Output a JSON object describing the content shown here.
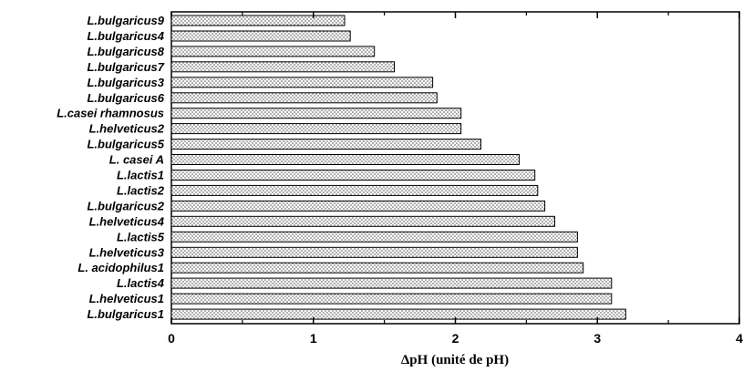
{
  "chart_data": {
    "type": "bar",
    "orientation": "horizontal",
    "categories": [
      "L.bulgaricus9",
      "L.bulgaricus4",
      "L.bulgaricus8",
      "L.bulgaricus7",
      "L.bulgaricus3",
      "L.bulgaricus6",
      "L.casei rhamnosus",
      "L.helveticus2",
      "L.bulgaricus5",
      "L. casei A",
      "L.lactis1",
      "L.lactis2",
      "L.bulgaricus2",
      "L.helveticus4",
      "L.lactis5",
      "L.helveticus3",
      "L. acidophilus1",
      "L.lactis4",
      "L.helveticus1",
      "L.bulgaricus1"
    ],
    "values": [
      1.22,
      1.26,
      1.43,
      1.57,
      1.84,
      1.87,
      2.04,
      2.04,
      2.18,
      2.45,
      2.56,
      2.58,
      2.63,
      2.7,
      2.86,
      2.86,
      2.9,
      3.1,
      3.1,
      3.2
    ],
    "title": "",
    "xlabel": "ΔpH (unité de pH)",
    "ylabel": "",
    "xlim": [
      0,
      4
    ],
    "xticks": [
      "0",
      "1",
      "2",
      "3",
      "4"
    ],
    "grid": false,
    "legend": "none",
    "bar_fill": "#e8e8e8",
    "bar_stroke": "#000000"
  }
}
